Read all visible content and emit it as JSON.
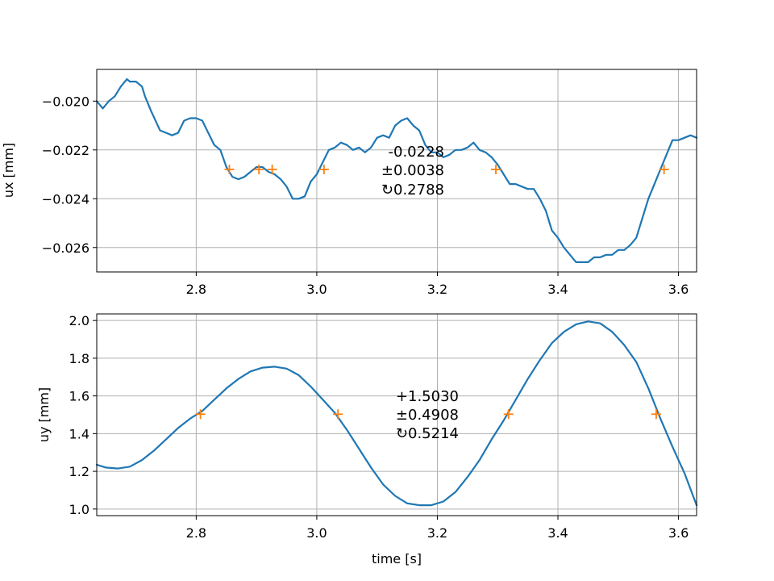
{
  "chart_data": [
    {
      "type": "line",
      "title": "",
      "xlabel": "",
      "ylabel": "ux [mm]",
      "xlim": [
        2.635,
        3.63
      ],
      "ylim": [
        -0.027,
        -0.0187
      ],
      "grid": true,
      "xticks": [
        2.8,
        3.0,
        3.2,
        3.4,
        3.6
      ],
      "xtick_labels": [
        "2.8",
        "3.0",
        "3.2",
        "3.4",
        "3.6"
      ],
      "yticks": [
        -0.02,
        -0.022,
        -0.024,
        -0.026
      ],
      "ytick_labels": [
        "−0.020",
        "−0.022",
        "−0.024",
        "−0.026"
      ],
      "colors": {
        "line": "#1f77b4",
        "markers": "#ff7f0e"
      },
      "series": [
        {
          "x": [
            2.635,
            2.645,
            2.655,
            2.665,
            2.675,
            2.685,
            2.69,
            2.7,
            2.71,
            2.715,
            2.725,
            2.74,
            2.75,
            2.76,
            2.77,
            2.78,
            2.79,
            2.8,
            2.81,
            2.82,
            2.83,
            2.84,
            2.85,
            2.86,
            2.87,
            2.88,
            2.89,
            2.9,
            2.91,
            2.92,
            2.93,
            2.94,
            2.95,
            2.96,
            2.97,
            2.98,
            2.99,
            3.0,
            3.01,
            3.02,
            3.03,
            3.04,
            3.05,
            3.06,
            3.07,
            3.08,
            3.09,
            3.1,
            3.11,
            3.12,
            3.13,
            3.14,
            3.15,
            3.16,
            3.17,
            3.18,
            3.19,
            3.2,
            3.21,
            3.22,
            3.23,
            3.24,
            3.25,
            3.26,
            3.27,
            3.28,
            3.29,
            3.3,
            3.31,
            3.32,
            3.33,
            3.34,
            3.35,
            3.36,
            3.37,
            3.38,
            3.39,
            3.4,
            3.41,
            3.42,
            3.43,
            3.44,
            3.45,
            3.46,
            3.47,
            3.48,
            3.49,
            3.5,
            3.51,
            3.52,
            3.53,
            3.54,
            3.55,
            3.56,
            3.57,
            3.58,
            3.59,
            3.6,
            3.61,
            3.62,
            3.63
          ],
          "y": [
            -0.02,
            -0.0203,
            -0.02,
            -0.0198,
            -0.0194,
            -0.0191,
            -0.0192,
            -0.0192,
            -0.0194,
            -0.0198,
            -0.0204,
            -0.0212,
            -0.0213,
            -0.0214,
            -0.0213,
            -0.0208,
            -0.0207,
            -0.0207,
            -0.0208,
            -0.0213,
            -0.0218,
            -0.022,
            -0.0227,
            -0.0231,
            -0.0232,
            -0.0231,
            -0.0229,
            -0.0227,
            -0.0227,
            -0.0229,
            -0.023,
            -0.0232,
            -0.0235,
            -0.024,
            -0.024,
            -0.0239,
            -0.0233,
            -0.023,
            -0.0225,
            -0.022,
            -0.0219,
            -0.0217,
            -0.0218,
            -0.022,
            -0.0219,
            -0.0221,
            -0.0219,
            -0.0215,
            -0.0214,
            -0.0215,
            -0.021,
            -0.0208,
            -0.0207,
            -0.021,
            -0.0212,
            -0.0218,
            -0.0221,
            -0.0221,
            -0.0223,
            -0.0222,
            -0.022,
            -0.022,
            -0.0219,
            -0.0217,
            -0.022,
            -0.0221,
            -0.0223,
            -0.0226,
            -0.023,
            -0.0234,
            -0.0234,
            -0.0235,
            -0.0236,
            -0.0236,
            -0.024,
            -0.0245,
            -0.0253,
            -0.0256,
            -0.026,
            -0.0263,
            -0.0266,
            -0.0266,
            -0.0266,
            -0.0264,
            -0.0264,
            -0.0263,
            -0.0263,
            -0.0261,
            -0.0261,
            -0.0259,
            -0.0256,
            -0.0248,
            -0.024,
            -0.0234,
            -0.0228,
            -0.0222,
            -0.0216,
            -0.0216,
            -0.0215,
            -0.0214,
            -0.0215
          ]
        }
      ],
      "markers": {
        "x": [
          2.855,
          2.904,
          2.926,
          3.012,
          3.297,
          3.576
        ],
        "y": [
          -0.0228,
          -0.0228,
          -0.0228,
          -0.0228,
          -0.0228,
          -0.0228
        ]
      },
      "annotation": [
        "-0.0228",
        "±0.0038",
        "↻0.2788"
      ]
    },
    {
      "type": "line",
      "title": "",
      "xlabel": "time [s]",
      "ylabel": "uy [mm]",
      "xlim": [
        2.635,
        3.63
      ],
      "ylim": [
        0.965,
        2.035
      ],
      "grid": true,
      "xticks": [
        2.8,
        3.0,
        3.2,
        3.4,
        3.6
      ],
      "xtick_labels": [
        "2.8",
        "3.0",
        "3.2",
        "3.4",
        "3.6"
      ],
      "yticks": [
        1.0,
        1.2,
        1.4,
        1.6,
        1.8,
        2.0
      ],
      "ytick_labels": [
        "1.0",
        "1.2",
        "1.4",
        "1.6",
        "1.8",
        "2.0"
      ],
      "colors": {
        "line": "#1f77b4",
        "markers": "#ff7f0e"
      },
      "series": [
        {
          "x": [
            2.635,
            2.65,
            2.67,
            2.69,
            2.71,
            2.73,
            2.75,
            2.77,
            2.79,
            2.81,
            2.83,
            2.85,
            2.87,
            2.89,
            2.91,
            2.93,
            2.95,
            2.97,
            2.99,
            3.01,
            3.03,
            3.05,
            3.07,
            3.09,
            3.11,
            3.13,
            3.15,
            3.17,
            3.19,
            3.21,
            3.23,
            3.25,
            3.27,
            3.29,
            3.31,
            3.33,
            3.35,
            3.37,
            3.39,
            3.41,
            3.43,
            3.45,
            3.47,
            3.49,
            3.51,
            3.53,
            3.55,
            3.57,
            3.59,
            3.61,
            3.63
          ],
          "y": [
            1.235,
            1.22,
            1.215,
            1.225,
            1.26,
            1.31,
            1.37,
            1.43,
            1.48,
            1.52,
            1.58,
            1.64,
            1.69,
            1.73,
            1.75,
            1.755,
            1.745,
            1.71,
            1.65,
            1.58,
            1.51,
            1.42,
            1.32,
            1.22,
            1.13,
            1.07,
            1.03,
            1.02,
            1.02,
            1.04,
            1.09,
            1.17,
            1.26,
            1.37,
            1.47,
            1.58,
            1.69,
            1.79,
            1.88,
            1.94,
            1.98,
            1.995,
            1.985,
            1.94,
            1.87,
            1.78,
            1.64,
            1.48,
            1.33,
            1.19,
            1.02
          ]
        }
      ],
      "markers": {
        "x": [
          2.807,
          3.035,
          3.318,
          3.563
        ],
        "y": [
          1.503,
          1.503,
          1.503,
          1.503
        ]
      },
      "annotation": [
        "+1.5030",
        "±0.4908",
        "↻0.5214"
      ]
    }
  ]
}
